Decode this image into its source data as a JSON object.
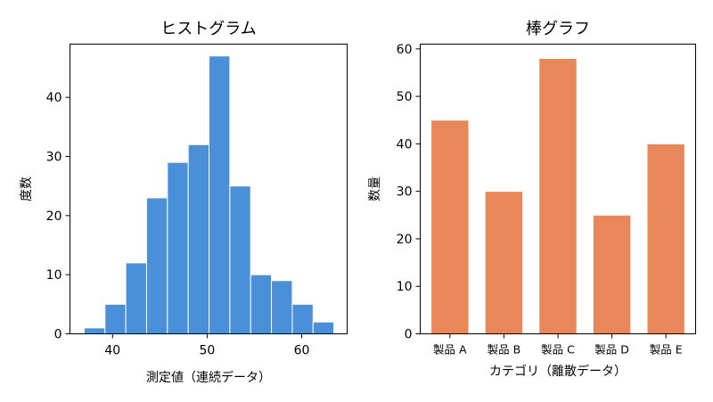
{
  "chart_data": [
    {
      "type": "bar",
      "title": "ヒストグラム",
      "xlabel": "測定値（連続データ）",
      "ylabel": "度数",
      "xlim": [
        35.5,
        64.8
      ],
      "ylim": [
        0,
        49
      ],
      "xticks": [
        "40",
        "50",
        "60"
      ],
      "xtick_values": [
        40,
        50,
        60
      ],
      "yticks": [
        "0",
        "10",
        "20",
        "30",
        "40"
      ],
      "ytick_values": [
        0,
        10,
        20,
        30,
        40
      ],
      "bin_edges": [
        37.0,
        39.2,
        41.4,
        43.6,
        45.8,
        48.0,
        50.2,
        52.4,
        54.6,
        56.8,
        59.0,
        61.2,
        63.4
      ],
      "values": [
        1,
        5,
        12,
        23,
        29,
        32,
        47,
        25,
        10,
        9,
        5,
        2
      ],
      "color": "#4a90d9",
      "edge_color": "#ffffff",
      "grid": false
    },
    {
      "type": "bar",
      "title": "棒グラフ",
      "xlabel": "カテゴリ（離散データ）",
      "ylabel": "数量",
      "categories": [
        "製品 A",
        "製品 B",
        "製品 C",
        "製品 D",
        "製品 E"
      ],
      "values": [
        45,
        30,
        58,
        25,
        40
      ],
      "ylim": [
        0,
        61
      ],
      "yticks": [
        "0",
        "10",
        "20",
        "30",
        "40",
        "50",
        "60"
      ],
      "ytick_values": [
        0,
        10,
        20,
        30,
        40,
        50,
        60
      ],
      "color": "#e8885a",
      "grid": false
    }
  ]
}
